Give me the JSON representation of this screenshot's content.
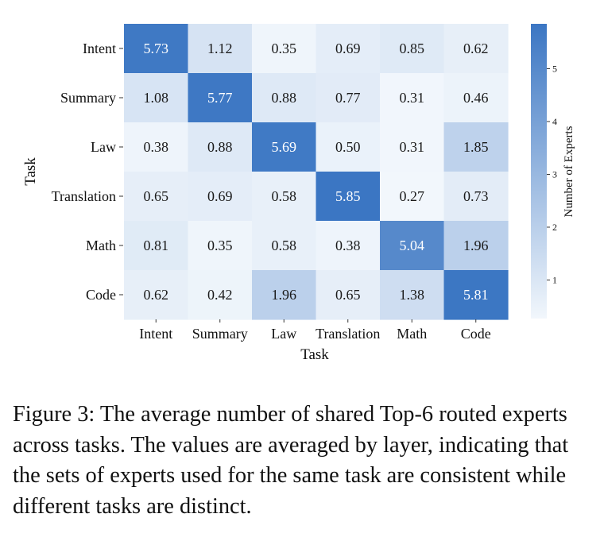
{
  "chart_data": {
    "type": "heatmap",
    "title": "",
    "xlabel": "Task",
    "ylabel": "Task",
    "x_categories": [
      "Intent",
      "Summary",
      "Law",
      "Translation",
      "Math",
      "Code"
    ],
    "y_categories": [
      "Intent",
      "Summary",
      "Law",
      "Translation",
      "Math",
      "Code"
    ],
    "values": [
      [
        5.73,
        1.12,
        0.35,
        0.69,
        0.85,
        0.62
      ],
      [
        1.08,
        5.77,
        0.88,
        0.77,
        0.31,
        0.46
      ],
      [
        0.38,
        0.88,
        5.69,
        0.5,
        0.31,
        1.85
      ],
      [
        0.65,
        0.69,
        0.58,
        5.85,
        0.27,
        0.73
      ],
      [
        0.81,
        0.35,
        0.58,
        0.38,
        5.04,
        1.96
      ],
      [
        0.62,
        0.42,
        1.96,
        0.65,
        1.38,
        5.81
      ]
    ],
    "value_labels": [
      [
        "5.73",
        "1.12",
        "0.35",
        "0.69",
        "0.85",
        "0.62"
      ],
      [
        "1.08",
        "5.77",
        "0.88",
        "0.77",
        "0.31",
        "0.46"
      ],
      [
        "0.38",
        "0.88",
        "5.69",
        "0.50",
        "0.31",
        "1.85"
      ],
      [
        "0.65",
        "0.69",
        "0.58",
        "5.85",
        "0.27",
        "0.73"
      ],
      [
        "0.81",
        "0.35",
        "0.58",
        "0.38",
        "5.04",
        "1.96"
      ],
      [
        "0.62",
        "0.42",
        "1.96",
        "0.65",
        "1.38",
        "5.81"
      ]
    ],
    "colorbar": {
      "label": "Number of Experts",
      "ticks": [
        1,
        2,
        3,
        4,
        5
      ],
      "range": [
        0.27,
        5.85
      ],
      "colormap": "Blues",
      "color_low": "#f2f7fc",
      "color_high": "#3b76c3"
    }
  },
  "caption": "Figure 3: The average number of shared Top-6 routed experts across tasks. The values are averaged by layer, indicating that the sets of experts used for the same task are consistent while different tasks are distinct."
}
